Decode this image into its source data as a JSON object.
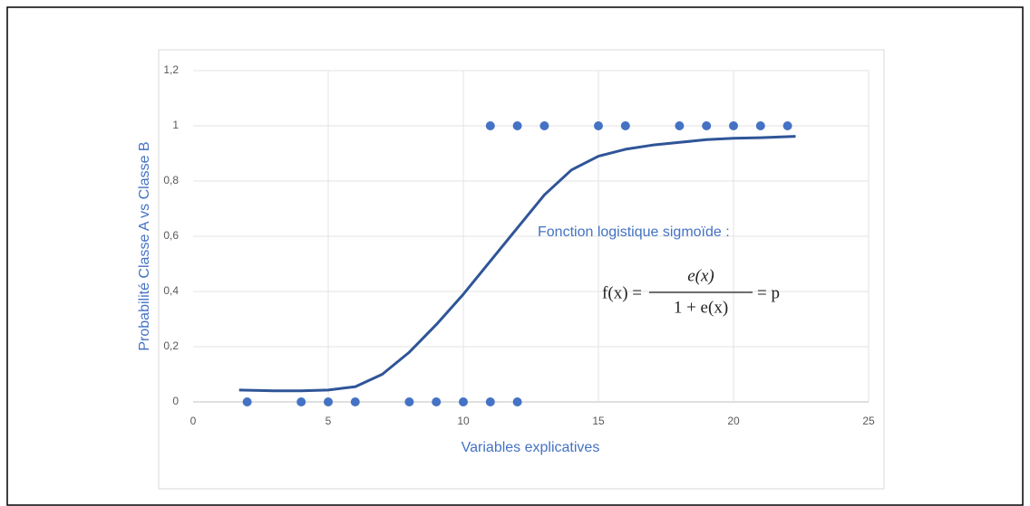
{
  "chart_data": {
    "type": "scatter",
    "x_label": "Variables explicatives",
    "y_label": "Probabilité Classe A vs Classe B",
    "annotation": "Fonction logistique sigmoïde :",
    "formula": {
      "left": "f(x) =",
      "numerator": "e(x)",
      "denominator": "1 + e(x)",
      "right": "= p"
    },
    "xlim": [
      0,
      25
    ],
    "xticks": [
      0,
      5,
      10,
      15,
      20,
      25
    ],
    "ylim": [
      0,
      1.2
    ],
    "yticks": [
      0,
      {
        "value": 0.2,
        "label": "0,2"
      },
      {
        "value": 0.4,
        "label": "0,4"
      },
      {
        "value": 0.6,
        "label": "0,6"
      },
      {
        "value": 0.8,
        "label": "0,8"
      },
      1,
      {
        "value": 1.2,
        "label": "1,2"
      }
    ],
    "grid": true,
    "series": [
      {
        "type": "scatter",
        "color": "#4472c4",
        "x": [
          2,
          4,
          5,
          6,
          8,
          9,
          10,
          11,
          12,
          11,
          12,
          13,
          15,
          16,
          18,
          19,
          20,
          21,
          22
        ],
        "values": [
          0,
          0,
          0,
          0,
          0,
          0,
          0,
          0,
          0,
          1,
          1,
          1,
          1,
          1,
          1,
          1,
          1,
          1,
          1
        ]
      },
      {
        "type": "line",
        "color": "#2f5597",
        "x": [
          1.7,
          3,
          4,
          5,
          6,
          7,
          8,
          9,
          10,
          11,
          12,
          13,
          14,
          15,
          16,
          17,
          18,
          19,
          20,
          21,
          22.3
        ],
        "values": [
          0.043,
          0.04,
          0.04,
          0.043,
          0.055,
          0.1,
          0.18,
          0.28,
          0.39,
          0.51,
          0.63,
          0.75,
          0.84,
          0.89,
          0.915,
          0.93,
          0.94,
          0.95,
          0.955,
          0.957,
          0.962
        ]
      }
    ]
  }
}
